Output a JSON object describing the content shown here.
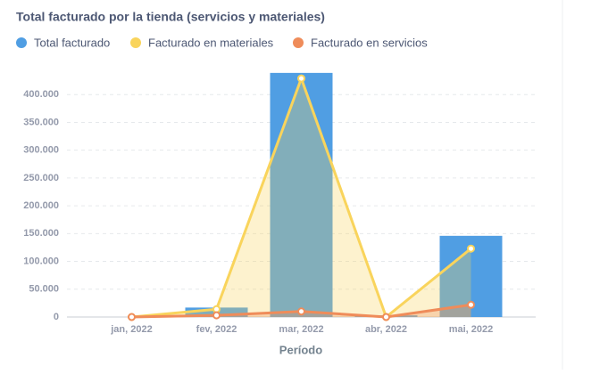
{
  "chart_data": {
    "type": "bar-line",
    "title": "Total facturado por la tienda (servicios y materiales)",
    "x_label": "Período",
    "categories": [
      "jan, 2022",
      "fev, 2022",
      "mar, 2022",
      "abr, 2022",
      "mai, 2022"
    ],
    "series": [
      {
        "name": "Total facturado",
        "color": "#509ee3",
        "type": "bar",
        "values": [
          0,
          17000,
          439000,
          3000,
          146000
        ]
      },
      {
        "name": "Facturado en materiales",
        "color": "#f9d45c",
        "type": "area",
        "values": [
          0,
          14000,
          429000,
          0,
          123000
        ]
      },
      {
        "name": "Facturado en servicios",
        "color": "#ef8c5a",
        "type": "area",
        "values": [
          0,
          3000,
          10000,
          0,
          22000
        ]
      }
    ],
    "ylim": [
      0,
      450000
    ],
    "yticks": [
      0,
      {
        "value": 50000,
        "label": "50.000"
      },
      {
        "value": 100000,
        "label": "100.000"
      },
      {
        "value": 150000,
        "label": "150.000"
      },
      {
        "value": 200000,
        "label": "200.000"
      },
      {
        "value": 250000,
        "label": "250.000"
      },
      {
        "value": 300000,
        "label": "300.000"
      },
      {
        "value": 350000,
        "label": "350.000"
      },
      {
        "value": 400000,
        "label": "400.000"
      }
    ],
    "grid": true
  }
}
